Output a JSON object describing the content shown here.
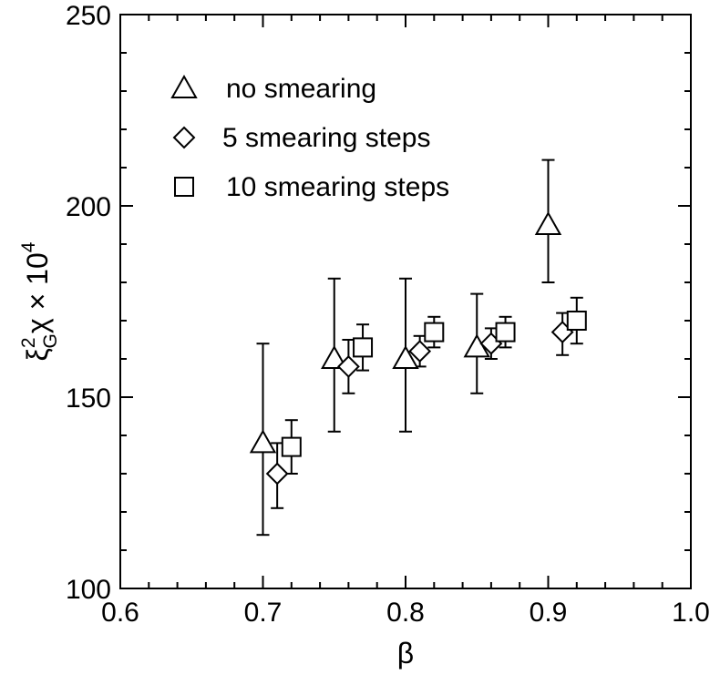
{
  "chart_data": {
    "type": "scatter",
    "title": "",
    "xlabel": "β",
    "ylabel": "ξ_G^2 χ × 10^4",
    "ylabel_parts": {
      "xi": "ξ",
      "sup": "2",
      "sub": "G",
      "chi": "χ",
      "times": " × 10",
      "exp": "4"
    },
    "xlim": [
      0.6,
      1.0
    ],
    "ylim": [
      100,
      250
    ],
    "x_ticks": [
      "0.6",
      "0.7",
      "0.8",
      "0.9",
      "1.0"
    ],
    "y_ticks": [
      "100",
      "150",
      "200",
      "250"
    ],
    "legend_position": "top-left",
    "grid": false,
    "series": [
      {
        "name": "no smearing",
        "marker": "triangle",
        "points": [
          {
            "x": 0.7,
            "y": 138,
            "err_low": 114,
            "err_high": 164
          },
          {
            "x": 0.75,
            "y": 160,
            "err_low": 141,
            "err_high": 181
          },
          {
            "x": 0.8,
            "y": 160,
            "err_low": 141,
            "err_high": 181
          },
          {
            "x": 0.85,
            "y": 163,
            "err_low": 151,
            "err_high": 177
          },
          {
            "x": 0.9,
            "y": 195,
            "err_low": 180,
            "err_high": 212
          }
        ]
      },
      {
        "name": "5 smearing steps",
        "marker": "diamond",
        "points": [
          {
            "x": 0.71,
            "y": 130,
            "err_low": 121,
            "err_high": 138
          },
          {
            "x": 0.76,
            "y": 158,
            "err_low": 151,
            "err_high": 165
          },
          {
            "x": 0.81,
            "y": 162,
            "err_low": 158,
            "err_high": 166
          },
          {
            "x": 0.86,
            "y": 164,
            "err_low": 160,
            "err_high": 168
          },
          {
            "x": 0.91,
            "y": 167,
            "err_low": 161,
            "err_high": 172
          }
        ]
      },
      {
        "name": "10 smearing steps",
        "marker": "square",
        "points": [
          {
            "x": 0.72,
            "y": 137,
            "err_low": 130,
            "err_high": 144
          },
          {
            "x": 0.77,
            "y": 163,
            "err_low": 157,
            "err_high": 169
          },
          {
            "x": 0.82,
            "y": 167,
            "err_low": 163,
            "err_high": 171
          },
          {
            "x": 0.87,
            "y": 167,
            "err_low": 163,
            "err_high": 171
          },
          {
            "x": 0.92,
            "y": 170,
            "err_low": 164,
            "err_high": 176
          }
        ]
      }
    ]
  }
}
